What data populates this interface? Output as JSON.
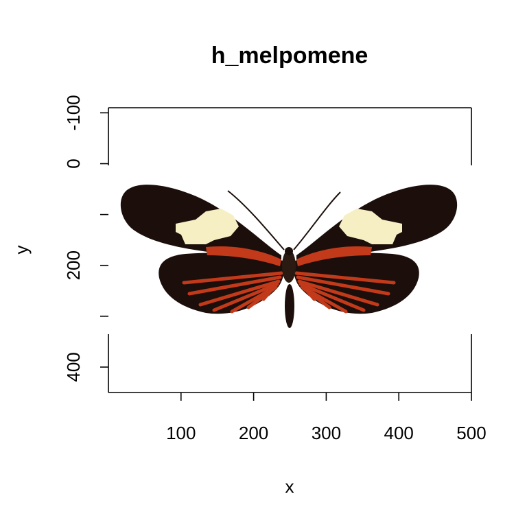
{
  "chart_data": {
    "type": "image",
    "title": "h_melpomene",
    "xlabel": "x",
    "ylabel": "y",
    "xlim": [
      0,
      500
    ],
    "ylim": [
      450,
      -110
    ],
    "x_ticks": [
      100,
      200,
      300,
      400,
      500
    ],
    "y_ticks": [
      -100,
      0,
      100,
      200,
      300,
      400
    ],
    "x_tick_labels": [
      "100",
      "200",
      "300",
      "400",
      "500"
    ],
    "y_tick_labels": [
      "-100",
      "0",
      "",
      "200",
      "",
      "400"
    ],
    "image_extent": {
      "xmin": 0,
      "xmax": 500,
      "ymin": 0,
      "ymax": 340
    },
    "image_subject": "butterfly-specimen",
    "colors": {
      "wing_black": "#1c0f0b",
      "wing_red": "#c23a1a",
      "wing_cream": "#f6efc4",
      "axis": "#000000"
    },
    "grid": false,
    "legend": "none"
  }
}
